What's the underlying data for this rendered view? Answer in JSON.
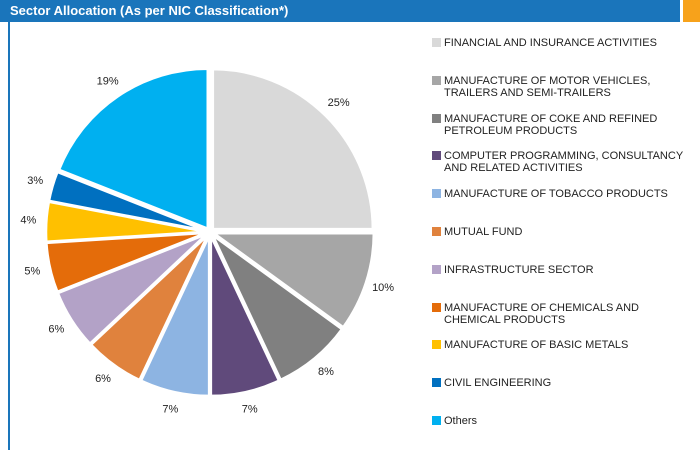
{
  "chart_data": {
    "type": "pie",
    "title": "Sector Allocation (As per NIC Classification*)",
    "categories": [
      "FINANCIAL AND INSURANCE ACTIVITIES",
      "MANUFACTURE OF MOTOR VEHICLES, TRAILERS AND SEMI-TRAILERS",
      "MANUFACTURE OF COKE AND REFINED PETROLEUM PRODUCTS",
      "COMPUTER PROGRAMMING, CONSULTANCY AND RELATED ACTIVITIES",
      "MANUFACTURE OF TOBACCO PRODUCTS",
      "MUTUAL FUND",
      "INFRASTRUCTURE SECTOR",
      "MANUFACTURE OF CHEMICALS AND CHEMICAL PRODUCTS",
      "MANUFACTURE OF BASIC METALS",
      "CIVIL ENGINEERING",
      "Others"
    ],
    "values": [
      25,
      10,
      8,
      7,
      7,
      6,
      6,
      5,
      4,
      3,
      19
    ],
    "value_labels": [
      "25%",
      "10%",
      "8%",
      "7%",
      "7%",
      "6%",
      "6%",
      "5%",
      "4%",
      "3%",
      "19%"
    ],
    "colors": [
      "#d9d9d9",
      "#a6a6a6",
      "#808080",
      "#604a7b",
      "#8db4e2",
      "#e0823d",
      "#b3a2c7",
      "#e46c0a",
      "#ffc000",
      "#0070c0",
      "#00b0f0"
    ],
    "legend": "right"
  }
}
